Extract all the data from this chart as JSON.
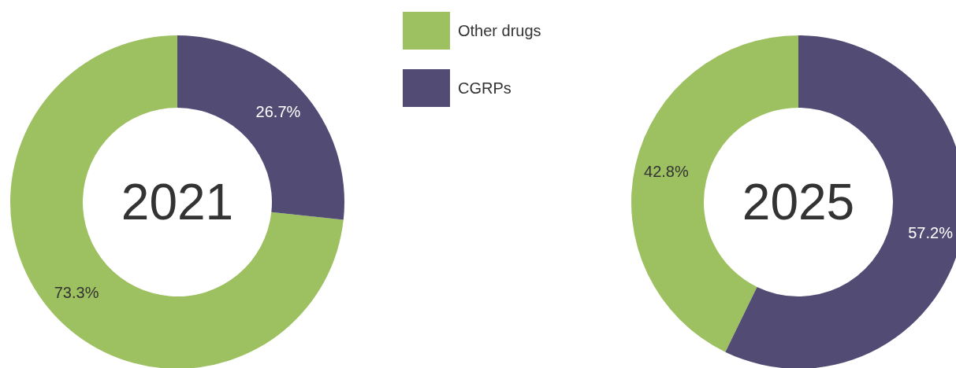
{
  "chart_data": [
    {
      "type": "donut",
      "title": "2021",
      "categories": [
        "Other drugs",
        "CGRPs"
      ],
      "values": [
        73.3,
        26.7
      ],
      "colors": [
        "#9dc060",
        "#524c74"
      ],
      "value_labels": [
        "73.3%",
        "26.7%"
      ],
      "legend": "top right"
    },
    {
      "type": "donut",
      "title": "2025",
      "categories": [
        null,
        null
      ],
      "values": [
        42.8,
        57.2
      ],
      "colors": [
        "#9dc060",
        "#524c74"
      ],
      "value_labels": [
        "42.8%",
        "57.2%"
      ]
    }
  ]
}
